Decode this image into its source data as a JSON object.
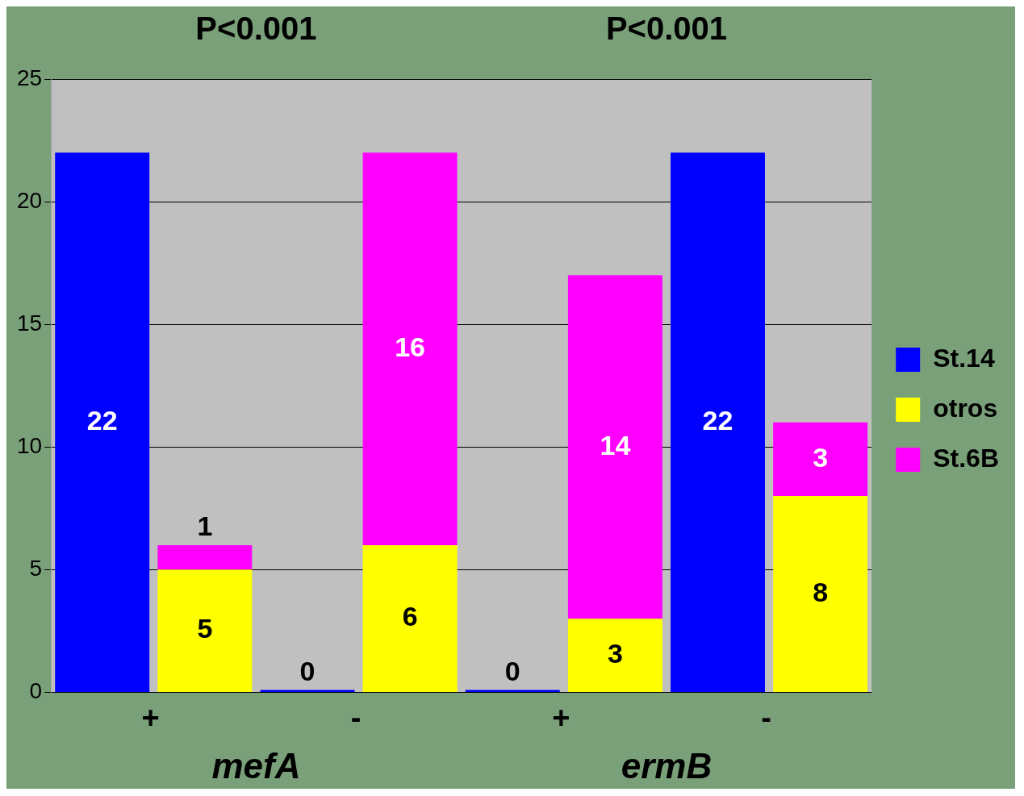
{
  "chart_data": {
    "type": "bar",
    "categories": [
      "+",
      null,
      "-",
      null,
      "+",
      null,
      "-",
      null
    ],
    "stacked": true,
    "series": [
      {
        "name": "St.14",
        "color": "#0000ff",
        "values": [
          22,
          null,
          0,
          null,
          0,
          null,
          22,
          null
        ]
      },
      {
        "name": "otros",
        "color": "#ffff00",
        "values": [
          null,
          5,
          null,
          6,
          null,
          3,
          null,
          8
        ]
      },
      {
        "name": "St.6B",
        "color": "#ff00ff",
        "values": [
          null,
          1,
          null,
          16,
          null,
          14,
          null,
          3
        ]
      }
    ],
    "ylim": [
      0,
      25
    ],
    "yticks": [
      0,
      5,
      10,
      15,
      20,
      25
    ],
    "grid": "y",
    "legend": "right",
    "data_labels": true,
    "annotations": [
      "P<0.001",
      "P<0.001",
      "mefA",
      "ermB"
    ]
  }
}
